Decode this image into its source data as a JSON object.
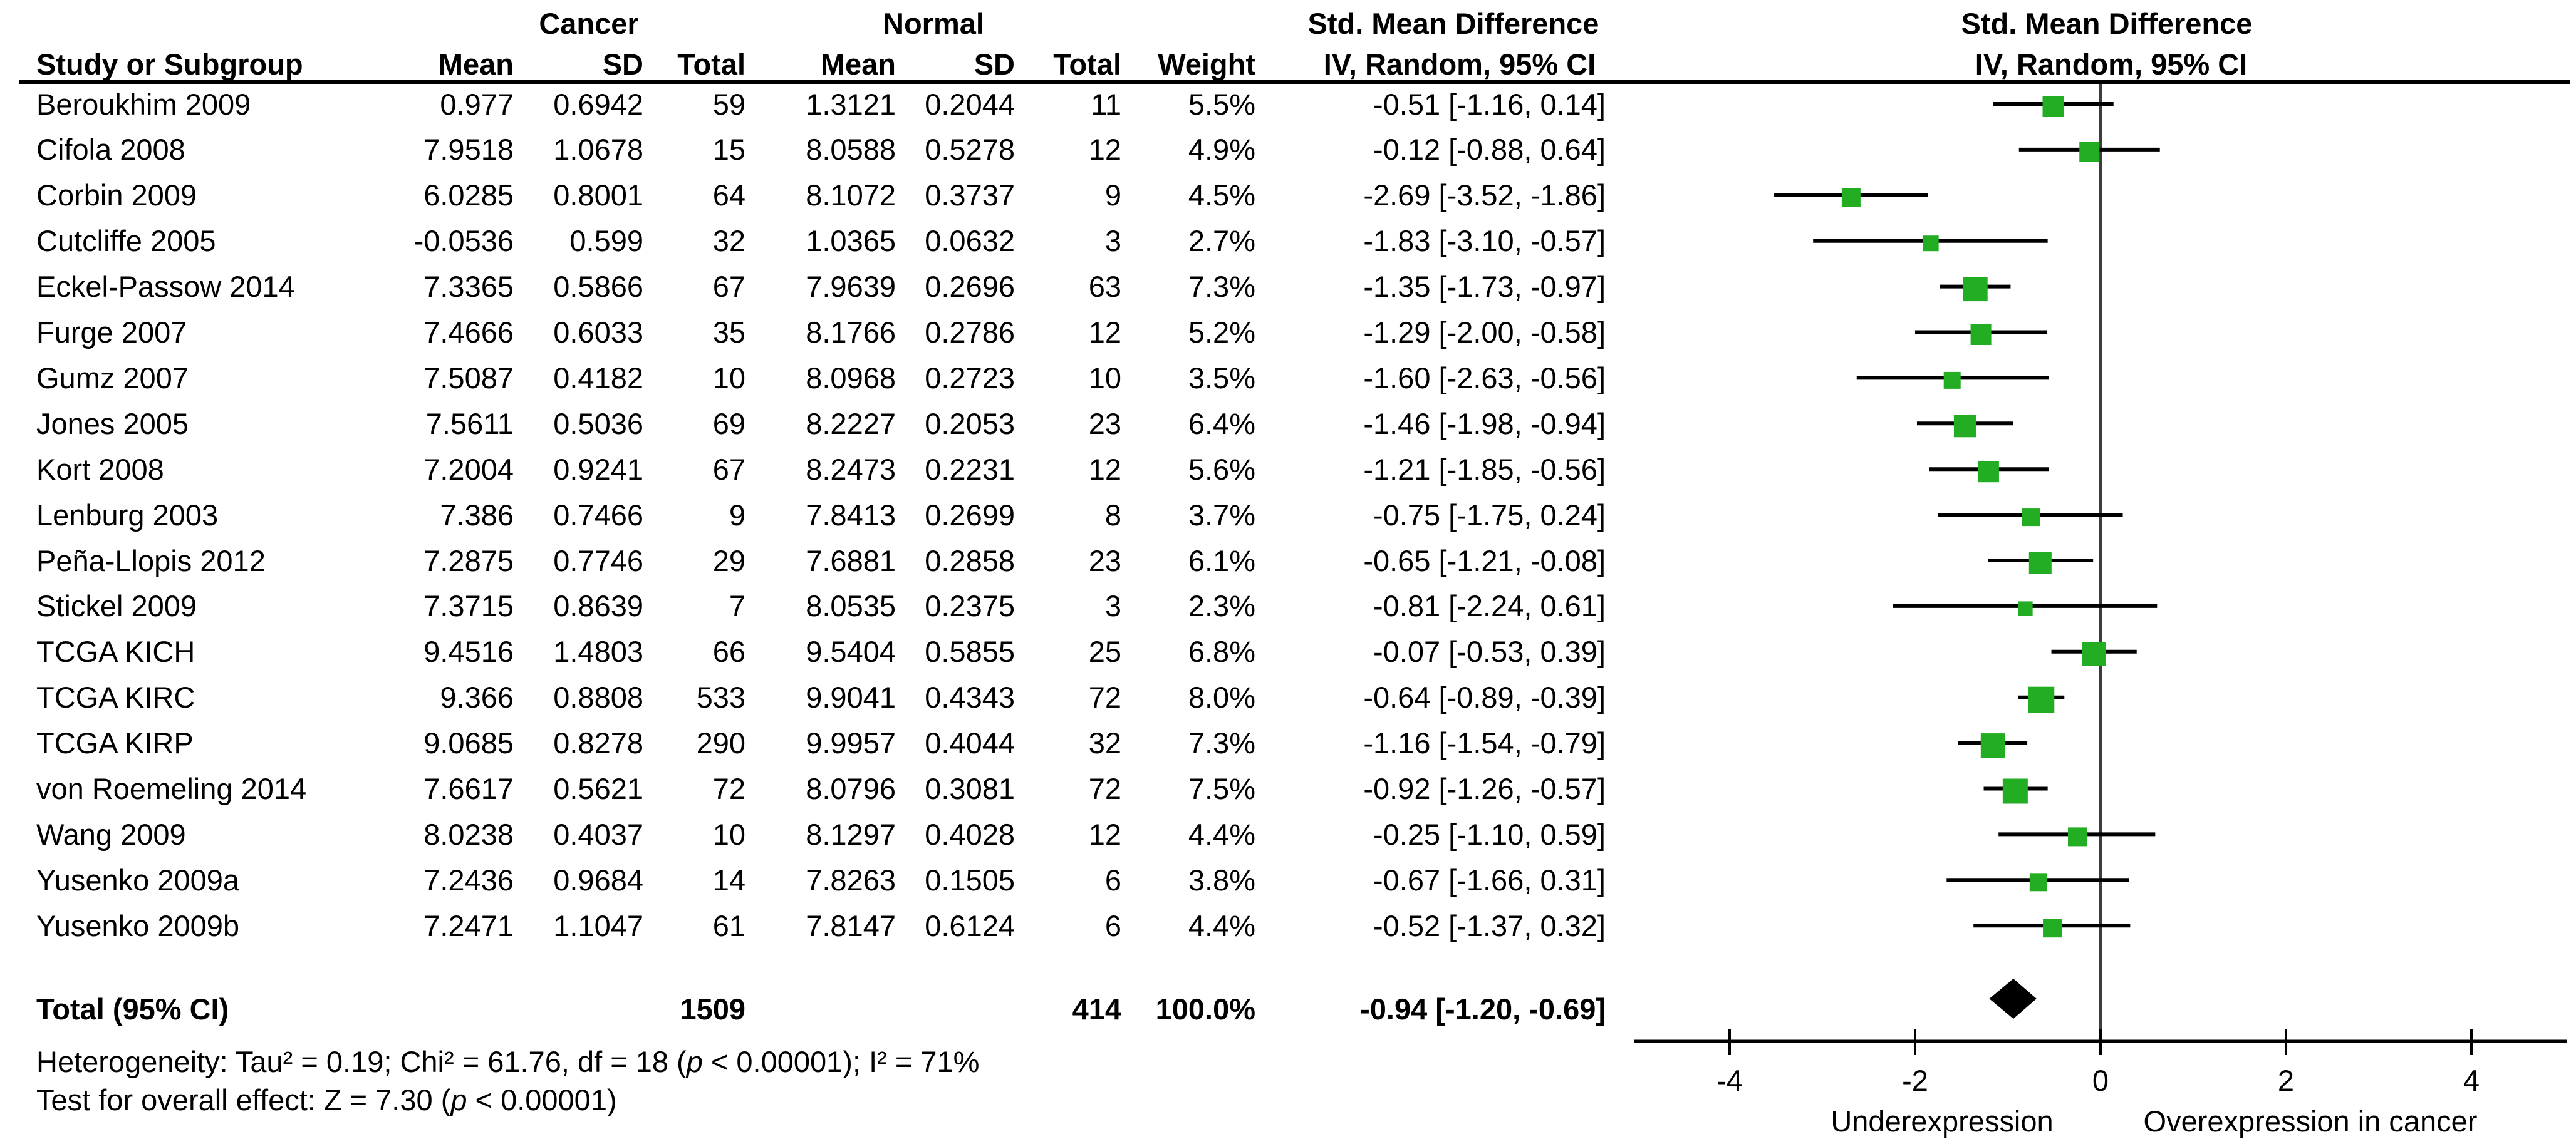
{
  "header": {
    "group_cancer": "Cancer",
    "group_normal": "Normal",
    "smd_title_left": "Std. Mean Difference",
    "smd_title_right": "Std. Mean Difference",
    "col_study": "Study or Subgroup",
    "col_mean": "Mean",
    "col_sd": "SD",
    "col_total": "Total",
    "col_weight": "Weight",
    "col_ci": "IV, Random, 95% CI"
  },
  "footer": {
    "het_pre": "Heterogeneity: Tau² = 0.19; Chi² = 61.76, df = 18 (",
    "het_p": "p",
    "het_post": " < 0.00001); I² = 71%",
    "test_pre": "Test for overall effect: Z = 7.30 (",
    "test_p": "p",
    "test_post": " < 0.00001)"
  },
  "colors": {
    "marker_green": "#22AD22",
    "line_black": "#000000",
    "zero_line_gray": "#3d3d3d"
  },
  "chart_data": {
    "type": "forest",
    "title": "Std. Mean Difference",
    "model": "IV, Random, 95% CI",
    "legend_position": "none",
    "grid": false,
    "xaxis": {
      "min": -5.05,
      "max": 5.05,
      "ticks": [
        "-4",
        "-2",
        "0",
        "2",
        "4"
      ],
      "tick_values": [
        -4,
        -2,
        0,
        2,
        4
      ],
      "label_left": "Underexpression",
      "label_right": "Overexpression in cancer"
    },
    "studies": [
      {
        "name": "Beroukhim 2009",
        "c_mean": "0.977",
        "c_sd": "0.6942",
        "c_total": "59",
        "n_mean": "1.3121",
        "n_sd": "0.2044",
        "n_total": "11",
        "weight": "5.5%",
        "ci": "-0.51 [-1.16, 0.14]",
        "est": -0.51,
        "lo": -1.16,
        "hi": 0.14,
        "w": 5.5
      },
      {
        "name": "Cifola 2008",
        "c_mean": "7.9518",
        "c_sd": "1.0678",
        "c_total": "15",
        "n_mean": "8.0588",
        "n_sd": "0.5278",
        "n_total": "12",
        "weight": "4.9%",
        "ci": "-0.12 [-0.88, 0.64]",
        "est": -0.12,
        "lo": -0.88,
        "hi": 0.64,
        "w": 4.9
      },
      {
        "name": "Corbin 2009",
        "c_mean": "6.0285",
        "c_sd": "0.8001",
        "c_total": "64",
        "n_mean": "8.1072",
        "n_sd": "0.3737",
        "n_total": "9",
        "weight": "4.5%",
        "ci": "-2.69 [-3.52, -1.86]",
        "est": -2.69,
        "lo": -3.52,
        "hi": -1.86,
        "w": 4.5
      },
      {
        "name": "Cutcliffe 2005",
        "c_mean": "-0.0536",
        "c_sd": "0.599",
        "c_total": "32",
        "n_mean": "1.0365",
        "n_sd": "0.0632",
        "n_total": "3",
        "weight": "2.7%",
        "ci": "-1.83 [-3.10, -0.57]",
        "est": -1.83,
        "lo": -3.1,
        "hi": -0.57,
        "w": 2.7
      },
      {
        "name": "Eckel-Passow 2014",
        "c_mean": "7.3365",
        "c_sd": "0.5866",
        "c_total": "67",
        "n_mean": "7.9639",
        "n_sd": "0.2696",
        "n_total": "63",
        "weight": "7.3%",
        "ci": "-1.35 [-1.73, -0.97]",
        "est": -1.35,
        "lo": -1.73,
        "hi": -0.97,
        "w": 7.3
      },
      {
        "name": "Furge 2007",
        "c_mean": "7.4666",
        "c_sd": "0.6033",
        "c_total": "35",
        "n_mean": "8.1766",
        "n_sd": "0.2786",
        "n_total": "12",
        "weight": "5.2%",
        "ci": "-1.29 [-2.00, -0.58]",
        "est": -1.29,
        "lo": -2.0,
        "hi": -0.58,
        "w": 5.2
      },
      {
        "name": "Gumz 2007",
        "c_mean": "7.5087",
        "c_sd": "0.4182",
        "c_total": "10",
        "n_mean": "8.0968",
        "n_sd": "0.2723",
        "n_total": "10",
        "weight": "3.5%",
        "ci": "-1.60 [-2.63, -0.56]",
        "est": -1.6,
        "lo": -2.63,
        "hi": -0.56,
        "w": 3.5
      },
      {
        "name": "Jones 2005",
        "c_mean": "7.5611",
        "c_sd": "0.5036",
        "c_total": "69",
        "n_mean": "8.2227",
        "n_sd": "0.2053",
        "n_total": "23",
        "weight": "6.4%",
        "ci": "-1.46 [-1.98, -0.94]",
        "est": -1.46,
        "lo": -1.98,
        "hi": -0.94,
        "w": 6.4
      },
      {
        "name": "Kort 2008",
        "c_mean": "7.2004",
        "c_sd": "0.9241",
        "c_total": "67",
        "n_mean": "8.2473",
        "n_sd": "0.2231",
        "n_total": "12",
        "weight": "5.6%",
        "ci": "-1.21 [-1.85, -0.56]",
        "est": -1.21,
        "lo": -1.85,
        "hi": -0.56,
        "w": 5.6
      },
      {
        "name": "Lenburg 2003",
        "c_mean": "7.386",
        "c_sd": "0.7466",
        "c_total": "9",
        "n_mean": "7.8413",
        "n_sd": "0.2699",
        "n_total": "8",
        "weight": "3.7%",
        "ci": "-0.75 [-1.75, 0.24]",
        "est": -0.75,
        "lo": -1.75,
        "hi": 0.24,
        "w": 3.7
      },
      {
        "name": "Peña-Llopis 2012",
        "c_mean": "7.2875",
        "c_sd": "0.7746",
        "c_total": "29",
        "n_mean": "7.6881",
        "n_sd": "0.2858",
        "n_total": "23",
        "weight": "6.1%",
        "ci": "-0.65 [-1.21, -0.08]",
        "est": -0.65,
        "lo": -1.21,
        "hi": -0.08,
        "w": 6.1
      },
      {
        "name": "Stickel 2009",
        "c_mean": "7.3715",
        "c_sd": "0.8639",
        "c_total": "7",
        "n_mean": "8.0535",
        "n_sd": "0.2375",
        "n_total": "3",
        "weight": "2.3%",
        "ci": "-0.81 [-2.24, 0.61]",
        "est": -0.81,
        "lo": -2.24,
        "hi": 0.61,
        "w": 2.3
      },
      {
        "name": "TCGA KICH",
        "c_mean": "9.4516",
        "c_sd": "1.4803",
        "c_total": "66",
        "n_mean": "9.5404",
        "n_sd": "0.5855",
        "n_total": "25",
        "weight": "6.8%",
        "ci": "-0.07 [-0.53, 0.39]",
        "est": -0.07,
        "lo": -0.53,
        "hi": 0.39,
        "w": 6.8
      },
      {
        "name": "TCGA KIRC",
        "c_mean": "9.366",
        "c_sd": "0.8808",
        "c_total": "533",
        "n_mean": "9.9041",
        "n_sd": "0.4343",
        "n_total": "72",
        "weight": "8.0%",
        "ci": "-0.64 [-0.89, -0.39]",
        "est": -0.64,
        "lo": -0.89,
        "hi": -0.39,
        "w": 8.0
      },
      {
        "name": "TCGA KIRP",
        "c_mean": "9.0685",
        "c_sd": "0.8278",
        "c_total": "290",
        "n_mean": "9.9957",
        "n_sd": "0.4044",
        "n_total": "32",
        "weight": "7.3%",
        "ci": "-1.16 [-1.54, -0.79]",
        "est": -1.16,
        "lo": -1.54,
        "hi": -0.79,
        "w": 7.3
      },
      {
        "name": "von Roemeling 2014",
        "c_mean": "7.6617",
        "c_sd": "0.5621",
        "c_total": "72",
        "n_mean": "8.0796",
        "n_sd": "0.3081",
        "n_total": "72",
        "weight": "7.5%",
        "ci": "-0.92 [-1.26, -0.57]",
        "est": -0.92,
        "lo": -1.26,
        "hi": -0.57,
        "w": 7.5
      },
      {
        "name": "Wang 2009",
        "c_mean": "8.0238",
        "c_sd": "0.4037",
        "c_total": "10",
        "n_mean": "8.1297",
        "n_sd": "0.4028",
        "n_total": "12",
        "weight": "4.4%",
        "ci": "-0.25 [-1.10, 0.59]",
        "est": -0.25,
        "lo": -1.1,
        "hi": 0.59,
        "w": 4.4
      },
      {
        "name": "Yusenko 2009a",
        "c_mean": "7.2436",
        "c_sd": "0.9684",
        "c_total": "14",
        "n_mean": "7.8263",
        "n_sd": "0.1505",
        "n_total": "6",
        "weight": "3.8%",
        "ci": "-0.67 [-1.66, 0.31]",
        "est": -0.67,
        "lo": -1.66,
        "hi": 0.31,
        "w": 3.8
      },
      {
        "name": "Yusenko 2009b",
        "c_mean": "7.2471",
        "c_sd": "1.1047",
        "c_total": "61",
        "n_mean": "7.8147",
        "n_sd": "0.6124",
        "n_total": "6",
        "weight": "4.4%",
        "ci": "-0.52 [-1.37, 0.32]",
        "est": -0.52,
        "lo": -1.37,
        "hi": 0.32,
        "w": 4.4
      }
    ],
    "total": {
      "label": "Total (95% CI)",
      "c_total": "1509",
      "n_total": "414",
      "weight": "100.0%",
      "ci": "-0.94 [-1.20, -0.69]",
      "est": -0.94,
      "lo": -1.2,
      "hi": -0.69
    },
    "heterogeneity": {
      "tau2": 0.19,
      "chi2": 61.76,
      "df": 18,
      "p": "< 0.00001",
      "i2": "71%"
    },
    "overall_effect": {
      "z": 7.3,
      "p": "< 0.00001"
    }
  }
}
